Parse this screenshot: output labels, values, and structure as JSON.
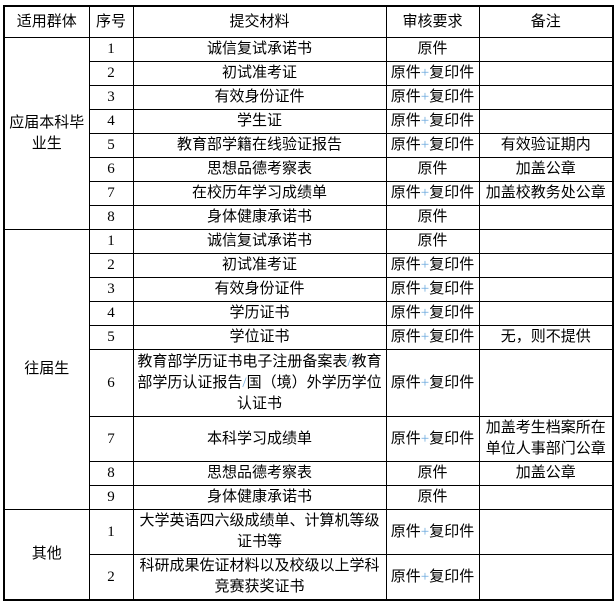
{
  "table": {
    "headers": [
      "适用群体",
      "序号",
      "提交材料",
      "审核要求",
      "备注"
    ],
    "accent_color": "#6ca9dd",
    "sections": [
      {
        "group": "应届本科毕业生",
        "rows": [
          {
            "seq": "1",
            "material": "诚信复试承诺书",
            "requirement": "原件",
            "note": ""
          },
          {
            "seq": "2",
            "material": "初试准考证",
            "requirement": "原件+复印件",
            "note": ""
          },
          {
            "seq": "3",
            "material": "有效身份证件",
            "requirement": "原件+复印件",
            "note": ""
          },
          {
            "seq": "4",
            "material": "学生证",
            "requirement": "原件+复印件",
            "note": ""
          },
          {
            "seq": "5",
            "material": "教育部学籍在线验证报告",
            "requirement": "原件+复印件",
            "note": "有效验证期内"
          },
          {
            "seq": "6",
            "material": "思想品德考察表",
            "requirement": "原件",
            "note": "加盖公章"
          },
          {
            "seq": "7",
            "material": "在校历年学习成绩单",
            "requirement": "原件+复印件",
            "note": "加盖校教务处公章"
          },
          {
            "seq": "8",
            "material": "身体健康承诺书",
            "requirement": "原件",
            "note": ""
          }
        ]
      },
      {
        "group": "往届生",
        "rows": [
          {
            "seq": "1",
            "material": "诚信复试承诺书",
            "requirement": "原件",
            "note": ""
          },
          {
            "seq": "2",
            "material": "初试准考证",
            "requirement": "原件+复印件",
            "note": ""
          },
          {
            "seq": "3",
            "material": "有效身份证件",
            "requirement": "原件+复印件",
            "note": ""
          },
          {
            "seq": "4",
            "material": "学历证书",
            "requirement": "原件+复印件",
            "note": ""
          },
          {
            "seq": "5",
            "material": "学位证书",
            "requirement": "原件+复印件",
            "note": "无，则不提供"
          },
          {
            "seq": "6",
            "material": "教育部学历证书电子注册备案表/教育部学历认证报告/国（境）外学历学位认证书",
            "requirement": "原件+复印件",
            "note": ""
          },
          {
            "seq": "7",
            "material": "本科学习成绩单",
            "requirement": "原件+复印件",
            "note": "加盖考生档案所在单位人事部门公章"
          },
          {
            "seq": "8",
            "material": "思想品德考察表",
            "requirement": "原件",
            "note": "加盖公章"
          },
          {
            "seq": "9",
            "material": "身体健康承诺书",
            "requirement": "原件",
            "note": ""
          }
        ]
      },
      {
        "group": "其他",
        "rows": [
          {
            "seq": "1",
            "material": "大学英语四六级成绩单、计算机等级证书等",
            "requirement": "原件+复印件",
            "note": ""
          },
          {
            "seq": "2",
            "material": "科研成果佐证材料以及校级以上学科竞赛获奖证书",
            "requirement": "原件+复印件",
            "note": ""
          }
        ]
      }
    ]
  }
}
